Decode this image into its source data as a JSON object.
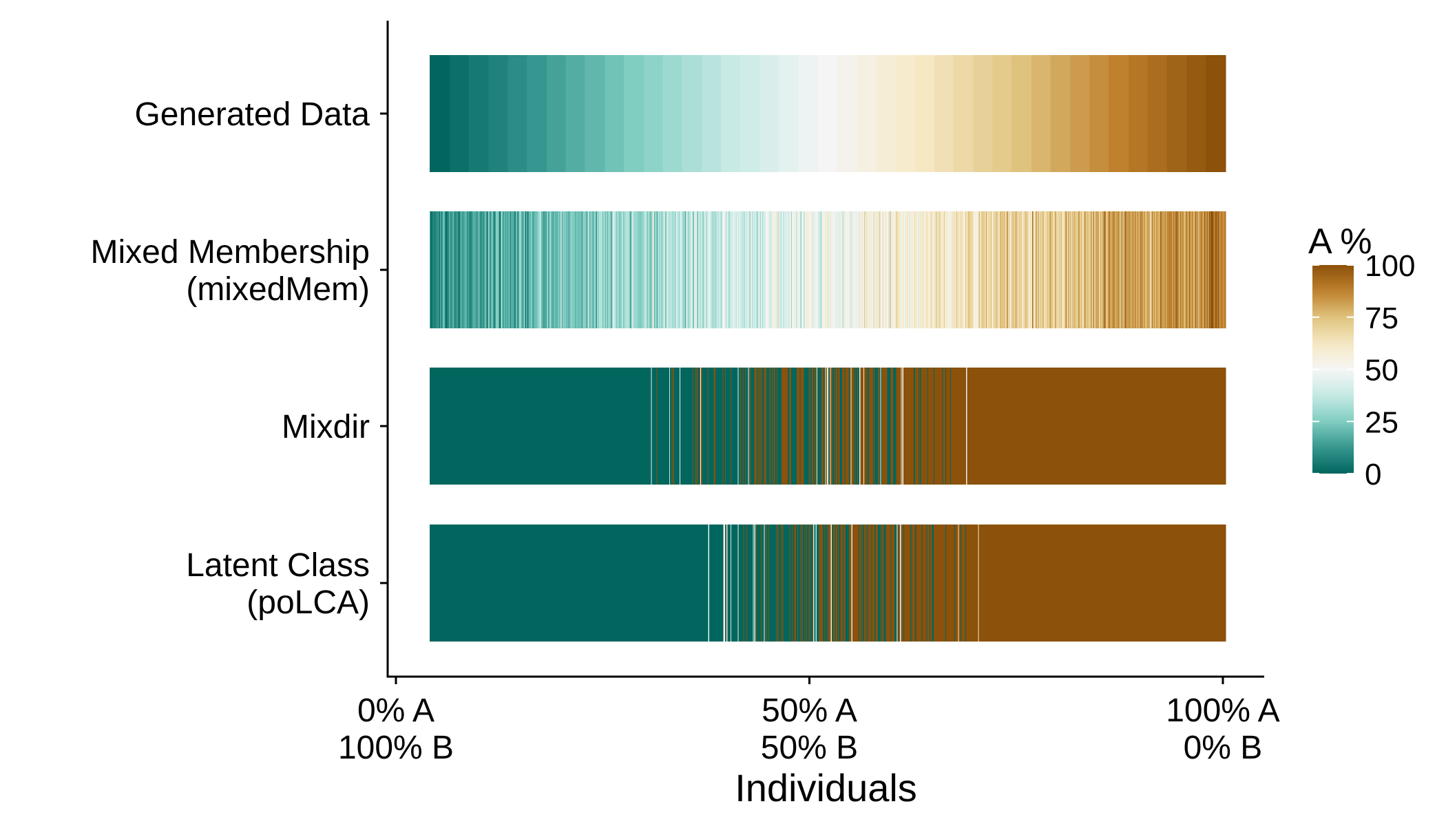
{
  "chart_data": {
    "type": "heatmap",
    "title": "",
    "xlabel": "Individuals",
    "ylabel": "",
    "x_ticks": [
      {
        "value": 0,
        "lines": [
          "0% A",
          "100% B"
        ]
      },
      {
        "value": 50,
        "lines": [
          "50% A",
          "50% B"
        ]
      },
      {
        "value": 100,
        "lines": [
          "100% A",
          "0% B"
        ]
      }
    ],
    "xlim": [
      -1,
      105
    ],
    "categories": [
      {
        "id": "generated",
        "lines": [
          "Generated Data"
        ]
      },
      {
        "id": "mixedmem",
        "lines": [
          "Mixed Membership",
          "(mixedMem)"
        ]
      },
      {
        "id": "mixdir",
        "lines": [
          "Mixdir"
        ]
      },
      {
        "id": "polca",
        "lines": [
          "Latent Class",
          "(poLCA)"
        ]
      }
    ],
    "individuals": 1000,
    "series": [
      {
        "id": "generated",
        "pattern": "stepped",
        "steps": 41,
        "value_range": [
          0,
          100
        ]
      },
      {
        "id": "mixedmem",
        "pattern": "noisy-gradient",
        "value_range": [
          10,
          90
        ],
        "noise_sd": 8
      },
      {
        "id": "mixdir",
        "pattern": "hard-assignment",
        "all_b_until_pct": 27,
        "mixed_zone_pct": [
          27,
          69
        ],
        "all_a_after_pct": 69
      },
      {
        "id": "polca",
        "pattern": "hard-assignment",
        "all_b_until_pct": 35,
        "mixed_zone_pct": [
          35,
          69
        ],
        "all_a_after_pct": 69
      }
    ],
    "legend": {
      "title": "A %",
      "placement": "right",
      "ticks": [
        0,
        25,
        50,
        75,
        100
      ],
      "tick_labels": [
        "0",
        "25",
        "50",
        "75",
        "100"
      ]
    },
    "color_scale": {
      "name": "BrBG",
      "low": "#01665e",
      "mid": "#f5f5f5",
      "high": "#8c510a",
      "stops": [
        "#01665e",
        "#35978f",
        "#80cdc1",
        "#c7eae5",
        "#f5f5f5",
        "#f6e8c3",
        "#dfc27d",
        "#bf812d",
        "#8c510a"
      ]
    },
    "grid": false
  }
}
